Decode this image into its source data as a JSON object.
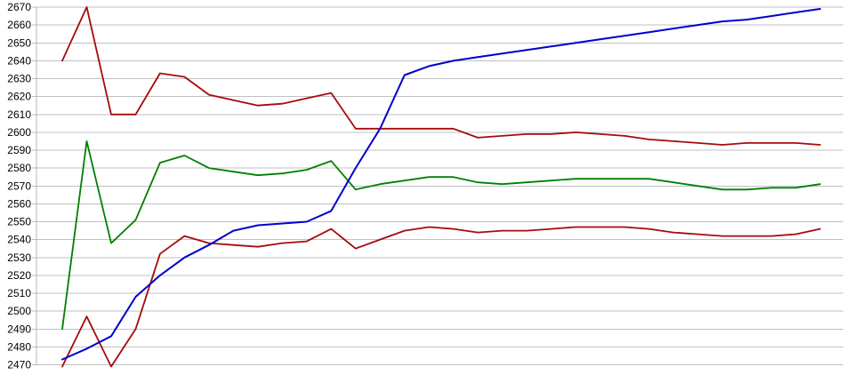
{
  "chart_data": {
    "type": "line",
    "title": "",
    "xlabel": "",
    "ylabel": "",
    "x_labels_visible": false,
    "grid": true,
    "legend": "none",
    "background_color": "#ffffff",
    "gridline_color": "#c0c0c0",
    "axis_color": "#b8b8b8",
    "label_color": "#000000",
    "y_axis": {
      "min": 2470,
      "max": 2670,
      "tick_step": 10,
      "tick_labels": [
        "2670",
        "2660",
        "2650",
        "2640",
        "2630",
        "2620",
        "2610",
        "2600",
        "2590",
        "2580",
        "2570",
        "2560",
        "2550",
        "2540",
        "2530",
        "2520",
        "2510",
        "2500",
        "2490",
        "2480",
        "2470"
      ]
    },
    "x_point_count": 32,
    "series": [
      {
        "name": "upper-red",
        "color": "#a50b0b",
        "values": [
          2640,
          2670,
          2610,
          2610,
          2633,
          2631,
          2621,
          2618,
          2615,
          2616,
          2619,
          2622,
          2602,
          2602,
          2602,
          2602,
          2602,
          2597,
          2598,
          2599,
          2599,
          2600,
          2599,
          2598,
          2596,
          2595,
          2594,
          2593,
          2594,
          2594,
          2594,
          2593
        ]
      },
      {
        "name": "green",
        "color": "#008000",
        "values": [
          2490,
          2595,
          2538,
          2551,
          2583,
          2587,
          2580,
          2578,
          2576,
          2577,
          2579,
          2584,
          2568,
          2571,
          2573,
          2575,
          2575,
          2572,
          2571,
          2572,
          2573,
          2574,
          2574,
          2574,
          2574,
          2572,
          2570,
          2568,
          2568,
          2569,
          2569,
          2571
        ]
      },
      {
        "name": "lower-red",
        "color": "#a50b0b",
        "values": [
          2469,
          2497,
          2469,
          2490,
          2532,
          2542,
          2538,
          2537,
          2536,
          2538,
          2539,
          2546,
          2535,
          2540,
          2545,
          2547,
          2546,
          2544,
          2545,
          2545,
          2546,
          2547,
          2547,
          2547,
          2546,
          2544,
          2543,
          2542,
          2542,
          2542,
          2543,
          2546
        ]
      },
      {
        "name": "blue",
        "color": "#0000cc",
        "values": [
          2473,
          2479,
          2486,
          2508,
          2520,
          2530,
          2537,
          2545,
          2548,
          2549,
          2550,
          2556,
          2580,
          2602,
          2632,
          2637,
          2640,
          2642,
          2644,
          2646,
          2648,
          2650,
          2652,
          2654,
          2656,
          2658,
          2660,
          2662,
          2663,
          2665,
          2667,
          2669
        ]
      }
    ]
  }
}
